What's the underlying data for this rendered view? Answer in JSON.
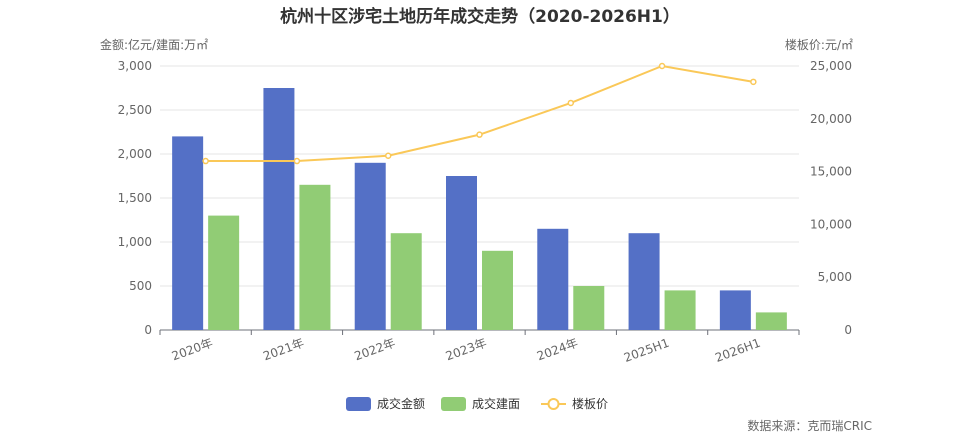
{
  "chart_data": {
    "type": "bar",
    "title": "杭州十区涉宅土地历年成交走势（2020-2026H1）",
    "categories": [
      "2020年",
      "2021年",
      "2022年",
      "2023年",
      "2024年",
      "2025H1",
      "2026H1"
    ],
    "left_axis_label": "金额:亿元/建面:万㎡",
    "right_axis_label": "楼板价:元/㎡",
    "left_ylim": [
      0,
      3000
    ],
    "left_ticks": [
      "0",
      "500",
      "1,000",
      "1,500",
      "2,000",
      "2,500",
      "3,000"
    ],
    "right_ylim": [
      0,
      25000
    ],
    "right_ticks": [
      "0",
      "5,000",
      "10,000",
      "15,000",
      "20,000",
      "25,000"
    ],
    "grid": true,
    "legend_position": "bottom",
    "series": [
      {
        "name": "成交金额",
        "type": "bar",
        "axis": "left",
        "color": "#5470c6",
        "values": [
          2200,
          2750,
          1900,
          1750,
          1150,
          1100,
          450
        ]
      },
      {
        "name": "成交建面",
        "type": "bar",
        "axis": "left",
        "color": "#91cc75",
        "values": [
          1300,
          1650,
          1100,
          900,
          500,
          450,
          200
        ]
      },
      {
        "name": "楼板价",
        "type": "line",
        "axis": "right",
        "color": "#fac858",
        "values": [
          16000,
          16000,
          16500,
          18500,
          21500,
          25000,
          23500
        ]
      }
    ],
    "source": "数据来源：克而瑞CRIC"
  }
}
